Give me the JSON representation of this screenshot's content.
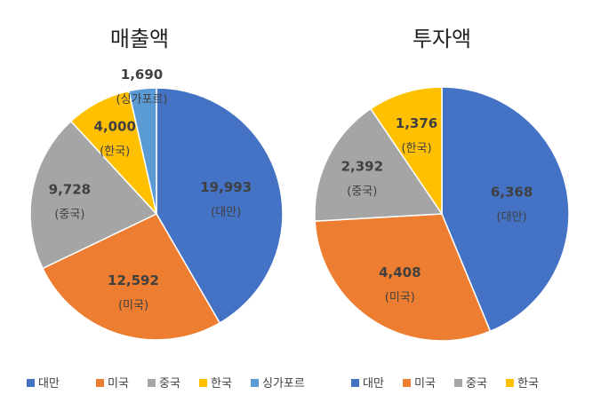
{
  "colors": {
    "대만": "#4472C4",
    "미국": "#ED7D31",
    "중국": "#A5A5A5",
    "한국": "#FFC000",
    "싱가포르": "#5B9BD5"
  },
  "chart_data": [
    {
      "type": "pie",
      "title": "매출액",
      "start_angle_deg": 0,
      "direction": "clockwise",
      "slices": [
        {
          "label": "대만",
          "value": 19993,
          "value_text": "19,993",
          "label_text": "(대만)"
        },
        {
          "label": "미국",
          "value": 12592,
          "value_text": "12,592",
          "label_text": "(미국)"
        },
        {
          "label": "중국",
          "value": 9728,
          "value_text": "9,728",
          "label_text": "(중국)"
        },
        {
          "label": "한국",
          "value": 4000,
          "value_text": "4,000",
          "label_text": "(한국)"
        },
        {
          "label": "싱가포르",
          "value": 1690,
          "value_text": "1,690",
          "label_text": "(싱가포르)"
        }
      ],
      "legend": [
        "대만",
        "미국",
        "중국",
        "한국",
        "싱가포르"
      ],
      "legend_position": "bottom"
    },
    {
      "type": "pie",
      "title": "투자액",
      "start_angle_deg": 0,
      "direction": "clockwise",
      "slices": [
        {
          "label": "대만",
          "value": 6368,
          "value_text": "6,368",
          "label_text": "(대만)"
        },
        {
          "label": "미국",
          "value": 4408,
          "value_text": "4,408",
          "label_text": "(미국)"
        },
        {
          "label": "중국",
          "value": 2392,
          "value_text": "2,392",
          "label_text": "(중국)"
        },
        {
          "label": "한국",
          "value": 1376,
          "value_text": "1,376",
          "label_text": "(한국)"
        }
      ],
      "legend": [
        "대만",
        "미국",
        "중국",
        "한국"
      ],
      "legend_position": "bottom"
    }
  ]
}
